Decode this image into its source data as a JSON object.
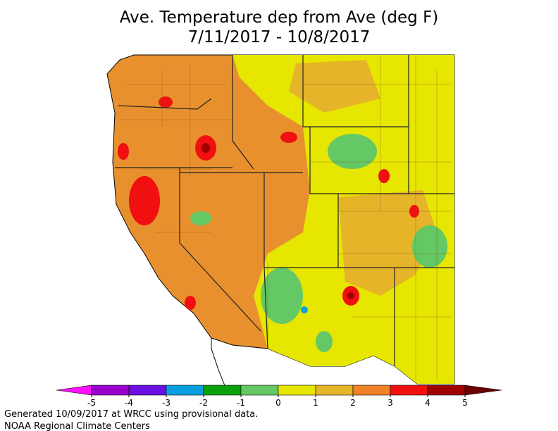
{
  "title": "Ave. Temperature dep from Ave (deg F)",
  "subtitle": "7/11/2017 - 10/8/2017",
  "legend": {
    "ticks": [
      -5,
      -4,
      -3,
      -2,
      -1,
      0,
      1,
      2,
      3,
      4,
      5
    ],
    "colors": [
      "#9a00cc",
      "#6a10e0",
      "#0aa0e0",
      "#0aa00a",
      "#64c864",
      "#e6e600",
      "#e6b428",
      "#f08228",
      "#f01010",
      "#a00000"
    ],
    "under_color": "#ff10ff",
    "over_color": "#6a0000"
  },
  "footer": [
    "Generated 10/09/2017 at WRCC using provisional data.",
    "NOAA Regional Climate Centers"
  ]
}
